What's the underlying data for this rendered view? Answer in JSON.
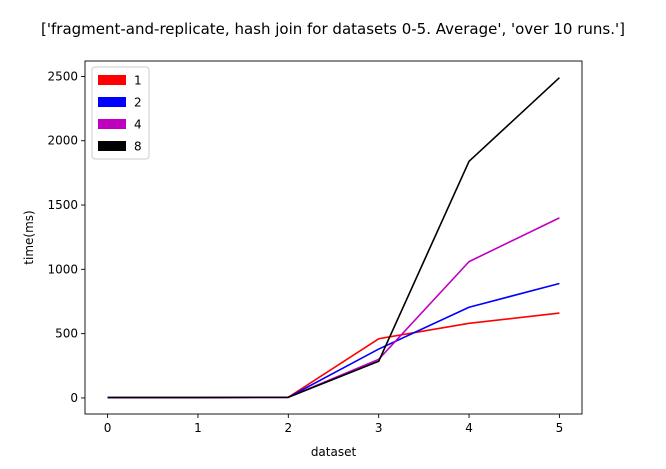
{
  "chart_data": {
    "type": "line",
    "title": "['fragment-and-replicate, hash join for datasets 0-5. Average', 'over 10 runs.']",
    "xlabel": "dataset",
    "ylabel": "time(ms)",
    "x": [
      0,
      1,
      2,
      3,
      4,
      5
    ],
    "xlim": [
      -0.25,
      5.25
    ],
    "ylim": [
      -125,
      2620
    ],
    "xticks": [
      0,
      1,
      2,
      3,
      4,
      5
    ],
    "yticks": [
      0,
      500,
      1000,
      1500,
      2000,
      2500
    ],
    "grid": false,
    "legend_position": "top-left",
    "series": [
      {
        "name": "1",
        "color": "#ff0000",
        "values": [
          3,
          3,
          5,
          460,
          580,
          660
        ]
      },
      {
        "name": "2",
        "color": "#0000ff",
        "values": [
          3,
          3,
          5,
          380,
          705,
          890
        ]
      },
      {
        "name": "4",
        "color": "#bf00bf",
        "values": [
          3,
          3,
          5,
          300,
          1060,
          1400
        ]
      },
      {
        "name": "8",
        "color": "#000000",
        "values": [
          3,
          3,
          5,
          285,
          1840,
          2490
        ]
      }
    ]
  }
}
